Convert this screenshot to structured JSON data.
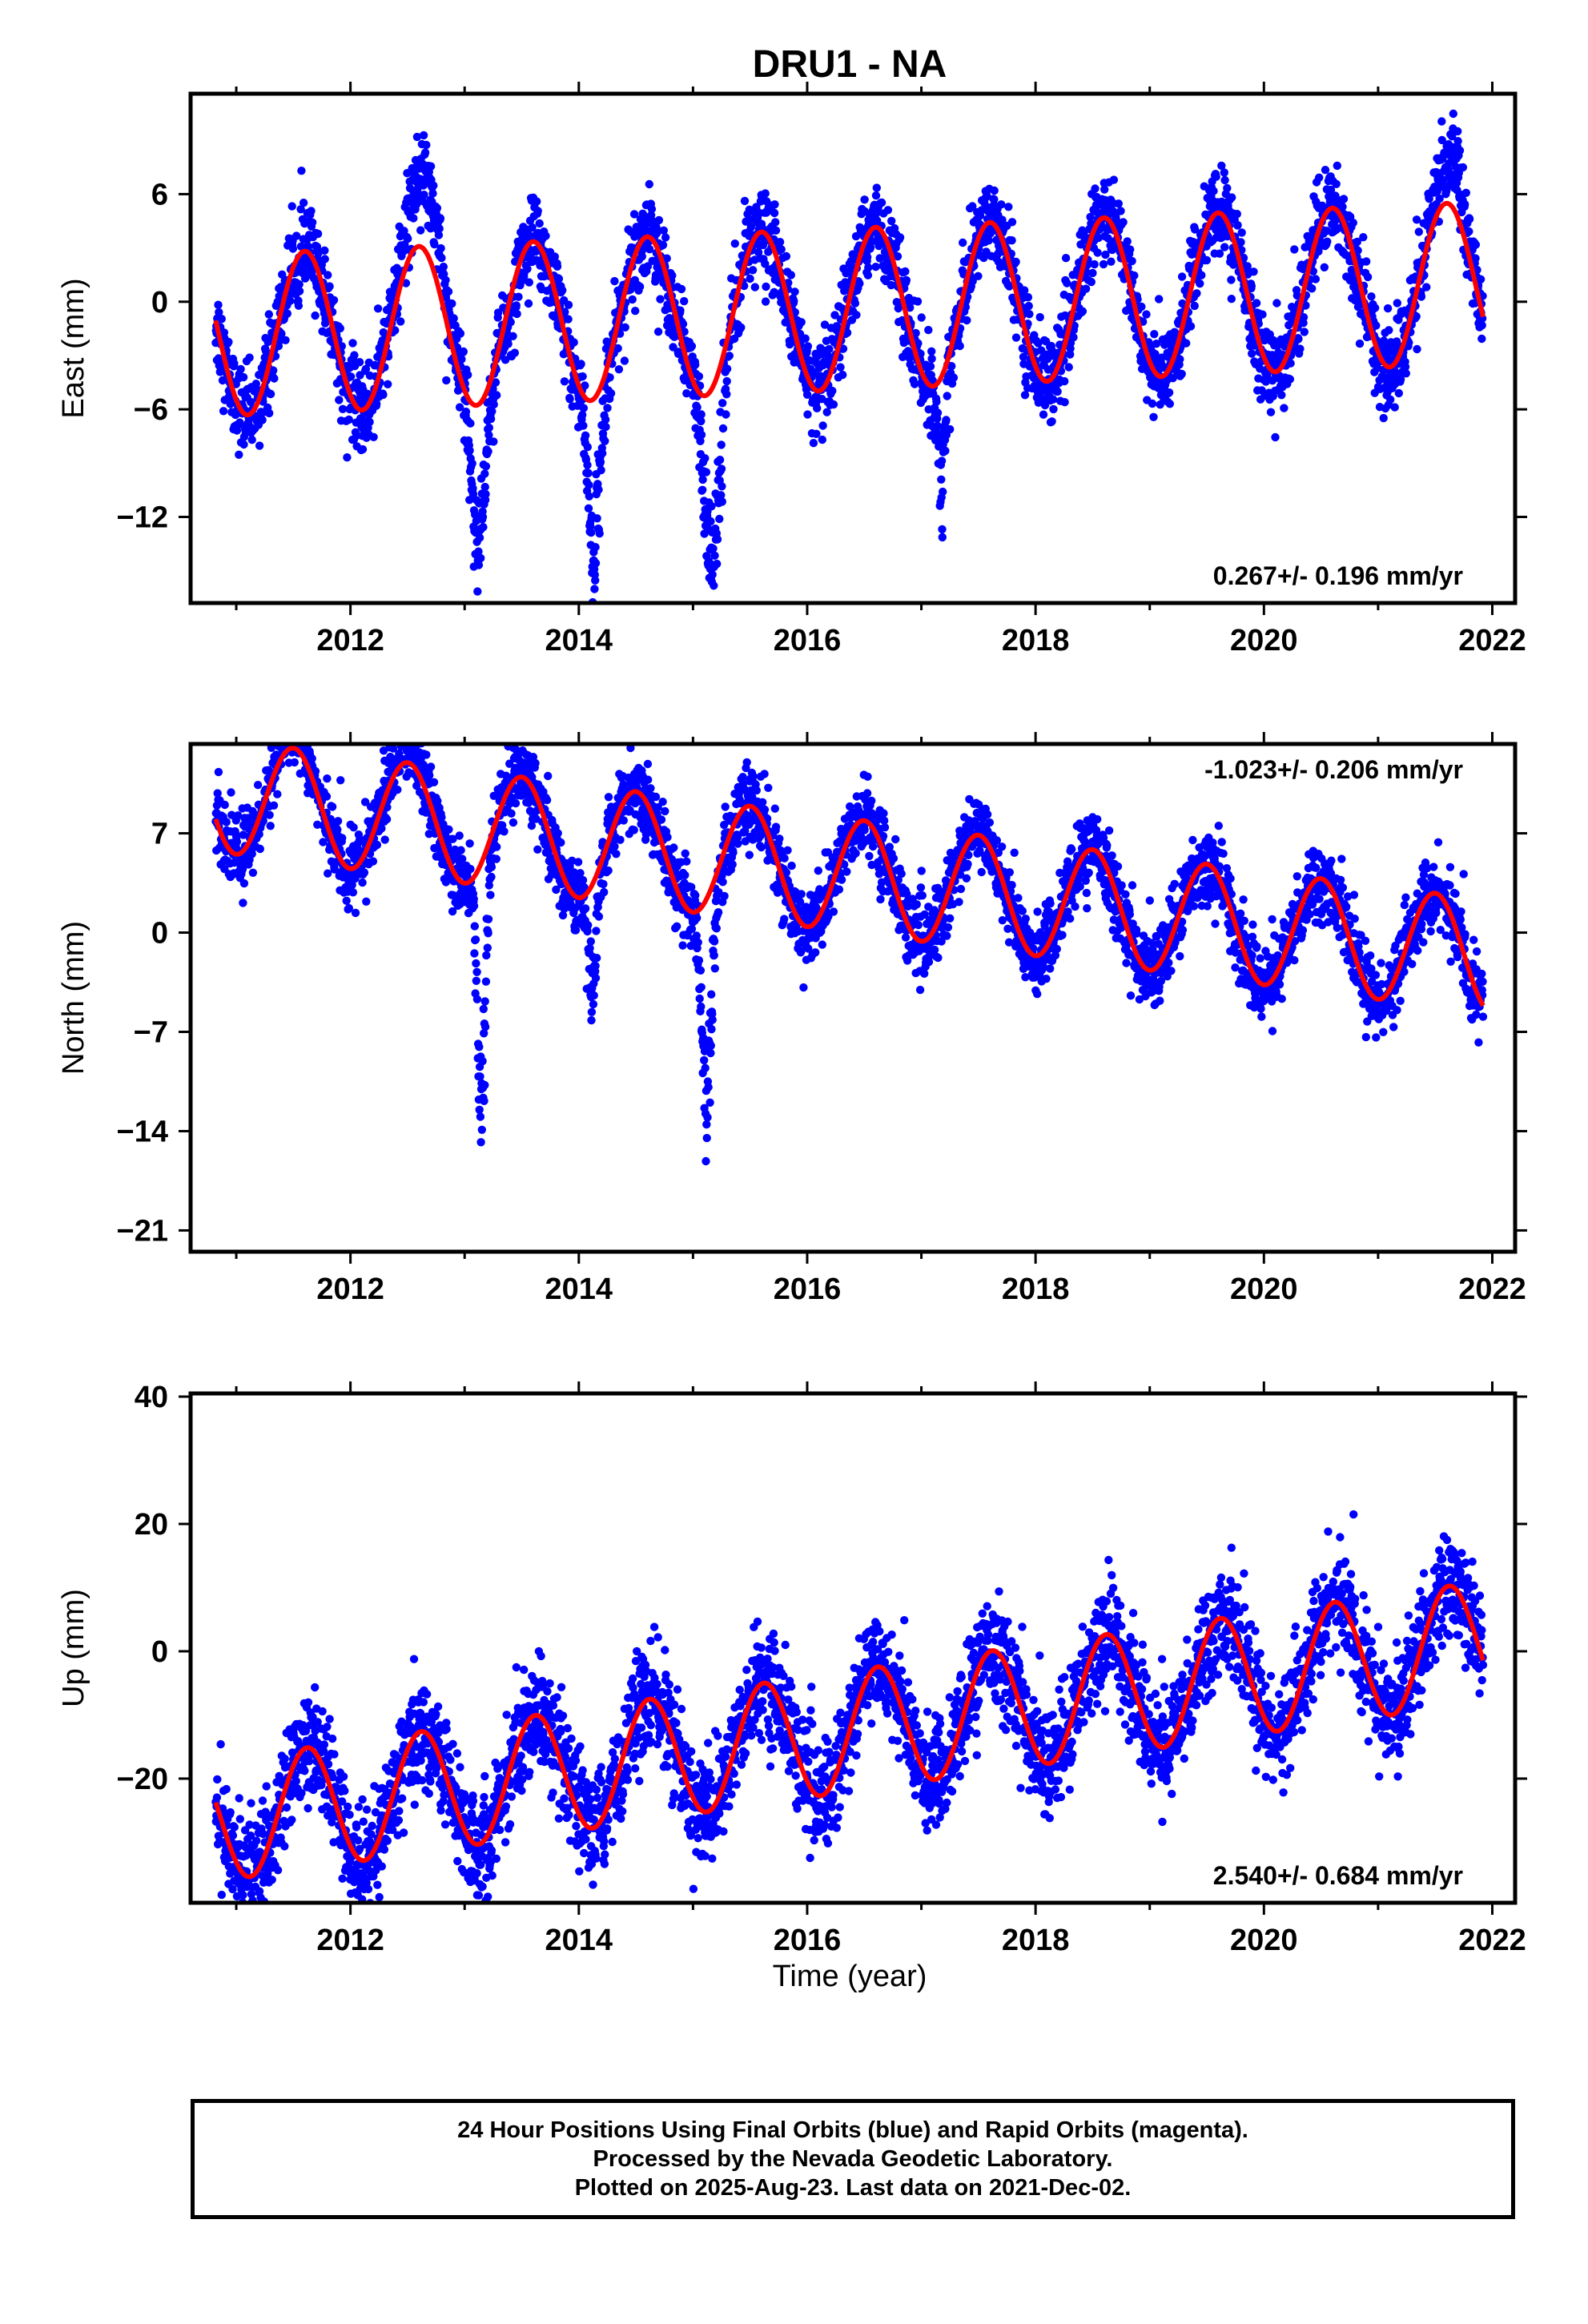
{
  "title": "DRU1 - NA",
  "colors": {
    "data": "#0000ff",
    "model": "#ff0000",
    "frame": "#000000"
  },
  "xlabel": "Time (year)",
  "x_tick_labels": [
    "2012",
    "2014",
    "2016",
    "2018",
    "2020",
    "2022"
  ],
  "footer": {
    "line1": "24 Hour Positions Using Final Orbits (blue) and Rapid Orbits (magenta).",
    "line2": "Processed by the Nevada Geodetic Laboratory.",
    "line3": "Plotted on 2025-Aug-23. Last data on 2021-Dec-02."
  },
  "chart_data": [
    {
      "type": "scatter",
      "component": "East",
      "ylabel": "East (mm)",
      "xlim": [
        2010.6,
        2022.2
      ],
      "ylim": [
        -16.8,
        11.6
      ],
      "xticks": [
        2012,
        2014,
        2016,
        2018,
        2020,
        2022
      ],
      "yticks": [
        6,
        0,
        -6,
        -12
      ],
      "ytick_labels": [
        "6",
        "0",
        "-6",
        "-12"
      ],
      "rate_label": "0.267+/- 0.196 mm/yr",
      "rate_position": "bottom-right",
      "date_range": [
        2010.82,
        2021.92
      ],
      "model": {
        "trend": 0.267,
        "amplitude": 4.5,
        "peak_phase": 0.6,
        "offset": -0.4,
        "amp_growth": 0.0
      },
      "series": [
        {
          "role": "daily positions",
          "color": "#0000ff",
          "scatter_sd": 1.2,
          "dips": [
            {
              "year": 2013.12,
              "depth": -9.0,
              "width": 0.08
            },
            {
              "year": 2014.13,
              "depth": -10.5,
              "width": 0.07
            },
            {
              "year": 2015.17,
              "depth": -12.0,
              "width": 0.09
            },
            {
              "year": 2017.18,
              "depth": -8.0,
              "width": 0.04
            }
          ],
          "summer_bumps": [
            {
              "year": 2012.65,
              "height": 4.5,
              "width": 0.18
            },
            {
              "year": 2021.65,
              "height": 3.0,
              "width": 0.15
            }
          ]
        },
        {
          "role": "seasonal + trend model",
          "color": "#ff0000"
        }
      ]
    },
    {
      "type": "scatter",
      "component": "North",
      "ylabel": "North (mm)",
      "xlim": [
        2010.6,
        2022.2
      ],
      "ylim": [
        -22.5,
        13.3
      ],
      "xticks": [
        2012,
        2014,
        2016,
        2018,
        2020,
        2022
      ],
      "yticks": [
        7,
        0,
        -7,
        -14,
        -21
      ],
      "ytick_labels": [
        "7",
        "0",
        "-7",
        "-14",
        "-21"
      ],
      "rate_label": "-1.023+/- 0.206 mm/yr",
      "rate_position": "top-right",
      "date_range": [
        2010.82,
        2021.92
      ],
      "model": {
        "trend": -1.023,
        "amplitude": 4.0,
        "peak_phase": 0.5,
        "offset": 4.0,
        "amp_growth": 0.0
      },
      "series": [
        {
          "role": "daily positions",
          "color": "#0000ff",
          "scatter_sd": 1.3,
          "dips": [
            {
              "year": 2013.15,
              "depth": -20.0,
              "width": 0.05
            },
            {
              "year": 2014.12,
              "depth": -8.5,
              "width": 0.05
            },
            {
              "year": 2015.12,
              "depth": -17.5,
              "width": 0.06
            }
          ],
          "summer_bumps": [
            {
              "year": 2011.5,
              "height": 1.5,
              "width": 0.15
            },
            {
              "year": 2012.5,
              "height": 1.5,
              "width": 0.15
            }
          ]
        },
        {
          "role": "seasonal + trend model",
          "color": "#ff0000"
        }
      ]
    },
    {
      "type": "scatter",
      "component": "Up",
      "ylabel": "Up (mm)",
      "xlim": [
        2010.6,
        2022.2
      ],
      "ylim": [
        -39.5,
        40.5
      ],
      "xticks": [
        2012,
        2014,
        2016,
        2018,
        2020,
        2022
      ],
      "yticks": [
        40,
        20,
        0,
        -20
      ],
      "ytick_labels": [
        "40",
        "20",
        "0",
        "-20"
      ],
      "rate_label": "2.540+/- 0.684 mm/yr",
      "rate_position": "bottom-right",
      "date_range": [
        2010.82,
        2021.92
      ],
      "model": {
        "trend": 2.54,
        "amplitude": 9.5,
        "peak_phase": 0.62,
        "offset": -12.5,
        "amp_growth": 0.0
      },
      "series": [
        {
          "role": "daily positions",
          "color": "#0000ff",
          "scatter_sd": 4.2,
          "dips": [],
          "summer_bumps": []
        },
        {
          "role": "seasonal + trend model",
          "color": "#ff0000"
        }
      ]
    }
  ]
}
